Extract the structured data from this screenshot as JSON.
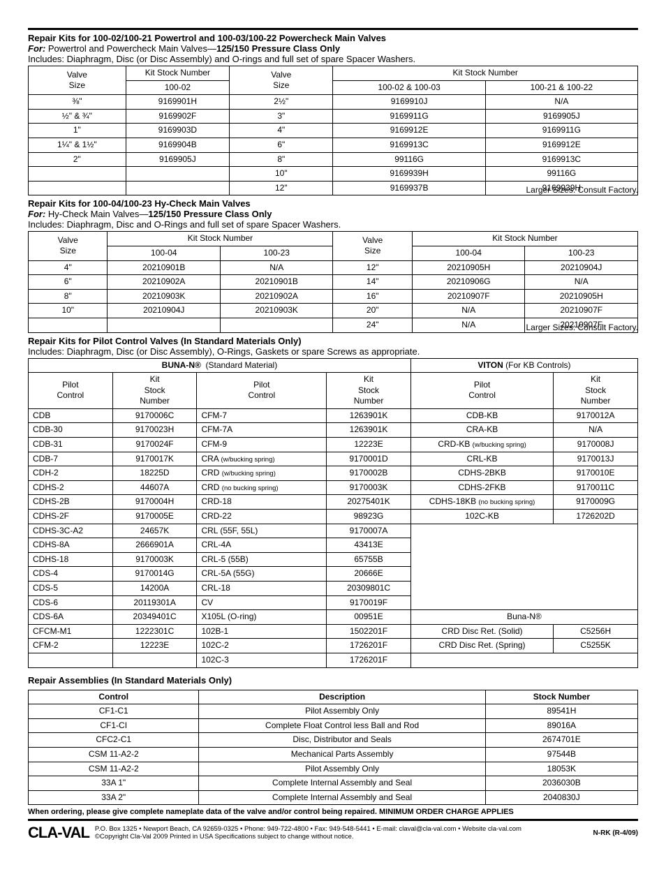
{
  "section1": {
    "title": "Repair Kits for 100-02/100-21 Powertrol and 100-03/100-22 Powercheck Main Valves",
    "for": "Powertrol and Powercheck Main Valves—",
    "for_bold": "125/150 Pressure Class Only",
    "for_prefix": "For: ",
    "includes": "Includes: Diaphragm, Disc (or Disc Assembly) and O-rings and full set of spare Spacer Washers.",
    "headers_left": [
      "Valve Size",
      "Kit Stock Number",
      "100-02"
    ],
    "headers_right": [
      "Valve Size",
      "Kit Stock Number",
      "100-02 & 100-03",
      "100-21 & 100-22"
    ],
    "left_rows": [
      [
        "⅜\"",
        "9169901H"
      ],
      [
        "½\"  &  ¾\"",
        "9169902F"
      ],
      [
        "1\"",
        "9169903D"
      ],
      [
        "1¼\" & 1½\"",
        "9169904B"
      ],
      [
        "2\"",
        "9169905J"
      ],
      [
        "",
        ""
      ],
      [
        "",
        ""
      ]
    ],
    "right_rows": [
      [
        "2½\"",
        "9169910J",
        "N/A"
      ],
      [
        "3\"",
        "9169911G",
        "9169905J"
      ],
      [
        "4\"",
        "9169912E",
        "9169911G"
      ],
      [
        "6\"",
        "9169913C",
        "9169912E"
      ],
      [
        "8\"",
        "99116G",
        "9169913C"
      ],
      [
        "10\"",
        "9169939H",
        "99116G"
      ],
      [
        "12\"",
        "9169937B",
        "9169939H"
      ]
    ],
    "note": "Larger Sizes: Consult Factory."
  },
  "section2": {
    "title": "Repair Kits for 100-04/100-23 Hy-Check Main Valves",
    "for": "Hy-Check Main Valves—",
    "for_bold": "125/150 Pressure Class Only",
    "for_prefix": "For: ",
    "includes": "Includes: Diaphragm, Disc and O-Rings and full set of spare Spacer Washers.",
    "cols": [
      "100-04",
      "100-23"
    ],
    "left_rows": [
      [
        "4\"",
        "20210901B",
        "N/A"
      ],
      [
        "6\"",
        "20210902A",
        "20210901B"
      ],
      [
        "8\"",
        "20210903K",
        "20210902A"
      ],
      [
        "10\"",
        "20210904J",
        "20210903K"
      ],
      [
        "",
        "",
        ""
      ]
    ],
    "right_rows": [
      [
        "12\"",
        "20210905H",
        "20210904J"
      ],
      [
        "14\"",
        "20210906G",
        "N/A"
      ],
      [
        "16\"",
        "20210907F",
        "20210905H"
      ],
      [
        "20\"",
        "N/A",
        "20210907F"
      ],
      [
        "24\"",
        "N/A",
        "20210907F"
      ]
    ],
    "note": "Larger Sizes: Consult Factory."
  },
  "section3": {
    "title": "Repair Kits for Pilot Control Valves (In Standard Materials Only)",
    "includes": "Includes: Diaphragm, Disc (or Disc Assembly), O-Rings, Gaskets or spare Screws as appropriate.",
    "buna_label": "BUNA-N®",
    "buna_sub": "(Standard Material)",
    "viton_label": "VITON",
    "viton_sub": "(For KB Controls)",
    "col_h": [
      "Pilot Control",
      "Kit Stock Number"
    ],
    "buna_rows_l": [
      [
        "CDB",
        "9170006C"
      ],
      [
        "CDB-30",
        "9170023H"
      ],
      [
        "CDB-31",
        "9170024F"
      ],
      [
        "CDB-7",
        "9170017K"
      ],
      [
        "CDH-2",
        "18225D"
      ],
      [
        "CDHS-2",
        "44607A"
      ],
      [
        "CDHS-2B",
        "9170004H"
      ],
      [
        "CDHS-2F",
        "9170005E"
      ],
      [
        "CDHS-3C-A2",
        "24657K"
      ],
      [
        "CDHS-8A",
        "2666901A"
      ],
      [
        "CDHS-18",
        "9170003K"
      ],
      [
        "CDS-4",
        "9170014G"
      ],
      [
        "CDS-5",
        "14200A"
      ],
      [
        "CDS-6",
        "20119301A"
      ],
      [
        "CDS-6A",
        "20349401C"
      ],
      [
        "CFCM-M1",
        "1222301C"
      ],
      [
        "CFM-2",
        "12223E"
      ],
      [
        "",
        ""
      ]
    ],
    "buna_rows_r": [
      [
        "CFM-7",
        "1263901K"
      ],
      [
        "CFM-7A",
        "1263901K"
      ],
      [
        "CFM-9",
        "12223E"
      ],
      [
        "CRA (w/bucking spring)",
        "9170001D"
      ],
      [
        "CRD (w/bucking spring)",
        "9170002B"
      ],
      [
        "CRD (no bucking spring)",
        "9170003K"
      ],
      [
        "CRD-18",
        "20275401K"
      ],
      [
        "CRD-22",
        "98923G"
      ],
      [
        "CRL  (55F, 55L)",
        "9170007A"
      ],
      [
        "CRL-4A",
        "43413E"
      ],
      [
        "CRL-5  (55B)",
        "65755B"
      ],
      [
        "CRL-5A  (55G)",
        "20666E"
      ],
      [
        "CRL-18",
        "20309801C"
      ],
      [
        "CV",
        "9170019F"
      ],
      [
        "X105L  (O-ring)",
        "00951E"
      ],
      [
        "102B-1",
        "1502201F"
      ],
      [
        "102C-2",
        "1726201F"
      ],
      [
        "102C-3",
        "1726201F"
      ]
    ],
    "viton_rows": [
      [
        "CDB-KB",
        "9170012A"
      ],
      [
        "CRA-KB",
        "N/A"
      ],
      [
        "CRD-KB (w/bucking spring)",
        "9170008J"
      ],
      [
        "CRL-KB",
        "9170013J"
      ],
      [
        "CDHS-2BKB",
        "9170010E"
      ],
      [
        "CDHS-2FKB",
        "9170011C"
      ],
      [
        "CDHS-18KB (no bucking spring)",
        "9170009G"
      ],
      [
        "102C-KB",
        "1726202D"
      ]
    ],
    "buna_small_label": "Buna-N®",
    "buna_small_rows": [
      [
        "CRD Disc Ret. (Solid)",
        "C5256H"
      ],
      [
        "CRD Disc Ret. (Spring)",
        "C5255K"
      ]
    ]
  },
  "section4": {
    "title": "Repair Assemblies (In Standard Materials Only)",
    "headers": [
      "Control",
      "Description",
      "Stock Number"
    ],
    "rows": [
      [
        "CF1-C1",
        "Pilot Assembly Only",
        "89541H"
      ],
      [
        "CF1-CI",
        "Complete Float Control less Ball and Rod",
        "89016A"
      ],
      [
        "CFC2-C1",
        "Disc, Distributor and Seals",
        "2674701E"
      ],
      [
        "CSM 11-A2-2",
        "Mechanical Parts Assembly",
        "97544B"
      ],
      [
        "CSM 11-A2-2",
        "Pilot Assembly Only",
        "18053K"
      ],
      [
        "33A 1\"",
        "Complete Internal Assembly and Seal",
        "2036030B"
      ],
      [
        "33A 2\"",
        "Complete Internal Assembly and Seal",
        "2040830J"
      ]
    ]
  },
  "order_note": "When ordering, please give complete nameplate data of the valve and/or control being repaired. MINIMUM ORDER CHARGE APPLIES",
  "footer": {
    "logo": "CLA-VAL",
    "line1": "P.O. Box 1325 • Newport Beach, CA 92659-0325 • Phone: 949-722-4800 • Fax: 949-548-5441 • E-mail: claval@cla-val.com • Website cla-val.com",
    "line2": "©Copyright Cla-Val 2009   Printed in USA   Specifications subject to change without notice.",
    "code": "N-RK (R-4/09)"
  }
}
